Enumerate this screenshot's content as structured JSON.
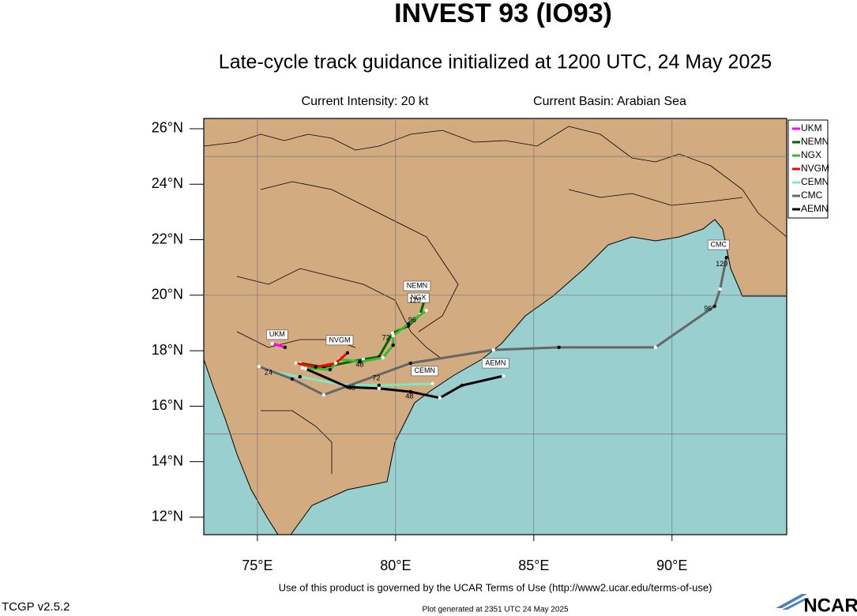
{
  "chart_data": {
    "type": "line",
    "title": "INVEST 93 (IO93)",
    "subtitle": "Late-cycle track guidance initialized at 1200 UTC, 24 May 2025",
    "info_left": "Current Intensity: 20 kt",
    "info_right": "Current Basin: Arabian Sea",
    "footer": "Use of this product is governed by the UCAR Terms of Use (http://www2.ucar.edu/terms-of-use)",
    "version": "TCGP v2.5.2",
    "generated": "Plot generated at 2351 UTC   24 May 2025",
    "logo": "NCAR",
    "xlim": [
      73.06,
      94.15
    ],
    "ylim": [
      11.37,
      26.37
    ],
    "xticks": [
      {
        "value": 75,
        "label": "75°E"
      },
      {
        "value": 80,
        "label": "80°E"
      },
      {
        "value": 85,
        "label": "85°E"
      },
      {
        "value": 90,
        "label": "90°E"
      }
    ],
    "yticks": [
      {
        "value": 12,
        "label": "12°N"
      },
      {
        "value": 14,
        "label": "14°N"
      },
      {
        "value": 16,
        "label": "16°N"
      },
      {
        "value": 18,
        "label": "18°N"
      },
      {
        "value": 20,
        "label": "20°N"
      },
      {
        "value": 22,
        "label": "22°N"
      },
      {
        "value": 24,
        "label": "24°N"
      },
      {
        "value": 26,
        "label": "26°N"
      }
    ],
    "grid": true,
    "grid_lat": [
      15,
      20,
      25
    ],
    "series": [
      {
        "name": "UKM",
        "color": "#ff00ff",
        "x": [
          75.54,
          76.0
        ],
        "values": [
          18.26,
          18.12
        ]
      },
      {
        "name": "NEMN",
        "color": "#006400",
        "x": [
          76.54,
          77.4,
          78.83,
          79.4,
          79.89,
          80.46,
          80.89,
          81.06
        ],
        "values": [
          17.55,
          17.41,
          17.69,
          17.78,
          18.63,
          18.89,
          19.31,
          19.88
        ]
      },
      {
        "name": "NGX",
        "color": "#33bb33",
        "x": [
          76.63,
          77.63,
          77.97,
          78.71,
          79.54,
          79.91,
          79.91,
          80.46,
          81.11
        ],
        "values": [
          17.38,
          17.32,
          17.69,
          17.6,
          17.75,
          18.2,
          18.54,
          18.97,
          19.45
        ]
      },
      {
        "name": "NVGM",
        "color": "#ff0000",
        "x": [
          76.4,
          77.11,
          77.83,
          78.26
        ],
        "values": [
          17.55,
          17.41,
          17.55,
          17.92
        ]
      },
      {
        "name": "CEMN",
        "color": "#80e8c0",
        "x": [
          75.4,
          76.54,
          78.03,
          79.4,
          81.34
        ],
        "values": [
          17.26,
          17.06,
          16.78,
          16.75,
          16.81
        ]
      },
      {
        "name": "CMC",
        "color": "#666666",
        "x": [
          75.06,
          76.26,
          77.4,
          80.54,
          83.54,
          85.91,
          89.4,
          91.54,
          91.74,
          91.97
        ],
        "values": [
          17.43,
          16.98,
          16.41,
          17.55,
          18.03,
          18.12,
          18.12,
          19.6,
          20.22,
          21.36
        ]
      },
      {
        "name": "AEMN",
        "color": "#000000",
        "x": [
          76.74,
          78.26,
          79.4,
          80.54,
          81.6,
          82.4,
          83.9
        ],
        "values": [
          17.35,
          16.69,
          16.64,
          16.52,
          16.3,
          16.75,
          17.09
        ]
      }
    ],
    "annotations": [
      {
        "text": "120",
        "lon": 91.8,
        "lat": 21.12
      },
      {
        "text": "96",
        "lon": 91.3,
        "lat": 19.5
      },
      {
        "text": "120",
        "lon": 80.7,
        "lat": 19.8
      },
      {
        "text": "96",
        "lon": 80.6,
        "lat": 19.1
      },
      {
        "text": "72",
        "lon": 79.65,
        "lat": 18.45
      },
      {
        "text": "72",
        "lon": 79.3,
        "lat": 17.0
      },
      {
        "text": "48",
        "lon": 78.7,
        "lat": 17.48
      },
      {
        "text": "48",
        "lon": 78.4,
        "lat": 16.65
      },
      {
        "text": "48",
        "lon": 80.5,
        "lat": 16.35
      },
      {
        "text": "24",
        "lon": 75.4,
        "lat": 17.2
      }
    ]
  }
}
